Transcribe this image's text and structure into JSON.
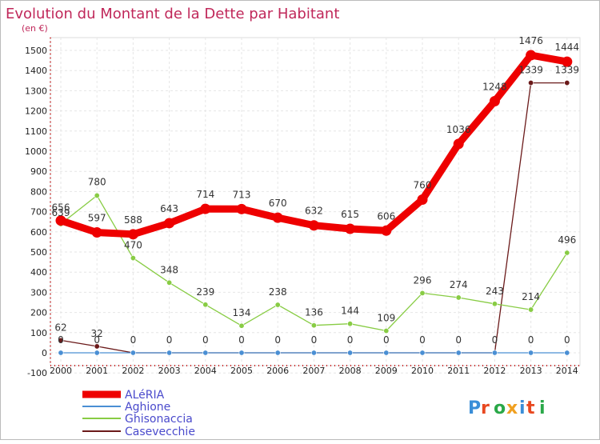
{
  "chart_data": {
    "type": "line",
    "title": "Evolution du Montant de la Dette par Habitant",
    "subtitle": "(en €)",
    "xlabel": "",
    "ylabel": "",
    "x": [
      "2000",
      "2001",
      "2002",
      "2003",
      "2004",
      "2005",
      "2006",
      "2007",
      "2008",
      "2009",
      "2010",
      "2011",
      "2012",
      "2013",
      "2014"
    ],
    "ylim": [
      -100,
      1500
    ],
    "yticks": [
      -100,
      0,
      100,
      200,
      300,
      400,
      500,
      600,
      700,
      800,
      900,
      1000,
      1100,
      1200,
      1300,
      1400,
      1500
    ],
    "grid": true,
    "legend_position": "bottom-left",
    "series": [
      {
        "name": "ALéRIA",
        "color": "#ee0000",
        "values": [
          656,
          597,
          588,
          643,
          714,
          713,
          670,
          632,
          615,
          606,
          760,
          1036,
          1248,
          1476,
          1444
        ],
        "labels": [
          "656",
          "597",
          "588",
          "643",
          "714",
          "713",
          "670",
          "632",
          "615",
          "606",
          "760",
          "1036",
          "1248",
          "1476",
          "1444"
        ]
      },
      {
        "name": "Aghione",
        "color": "#4a8fd4",
        "values": [
          0,
          0,
          0,
          0,
          0,
          0,
          0,
          0,
          0,
          0,
          0,
          0,
          0,
          0,
          0
        ],
        "labels": [
          "0",
          "0",
          "",
          "",
          "",
          "",
          "",
          "",
          "",
          "",
          "",
          "",
          "",
          "0",
          "0"
        ]
      },
      {
        "name": "Ghisonaccia",
        "color": "#88cc44",
        "values": [
          639,
          780,
          470,
          348,
          239,
          134,
          238,
          136,
          144,
          109,
          296,
          274,
          243,
          214,
          496
        ],
        "labels": [
          "639",
          "780",
          "470",
          "348",
          "239",
          "134",
          "238",
          "136",
          "144",
          "109",
          "296",
          "274",
          "243",
          "214",
          "496"
        ]
      },
      {
        "name": "Casevecchie",
        "color": "#6b1a1a",
        "values": [
          62,
          32,
          0,
          0,
          0,
          0,
          0,
          0,
          0,
          0,
          0,
          0,
          0,
          1339,
          1339
        ],
        "labels": [
          "62",
          "32",
          "0",
          "0",
          "0",
          "0",
          "0",
          "0",
          "0",
          "0",
          "0",
          "0",
          "0",
          "1339",
          "1339"
        ]
      }
    ]
  },
  "logo": {
    "text": "Proxiti",
    "letter_colors": [
      "#3a8ed8",
      "#e84820",
      "#2aa848",
      "#f0a020",
      "#3a8ed8",
      "#e84820",
      "#2aa848"
    ]
  }
}
